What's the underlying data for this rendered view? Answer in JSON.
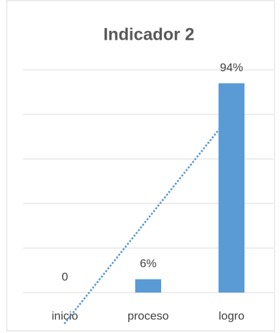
{
  "chart_data": {
    "type": "bar",
    "title": "Indicador 2",
    "categories": [
      "inicio",
      "proceso",
      "logro"
    ],
    "values": [
      0,
      6,
      94
    ],
    "value_labels": [
      "0",
      "6%",
      "94%"
    ],
    "color": "#5b9bd5",
    "ylim": [
      0,
      100
    ],
    "yticks": [
      0,
      20,
      40,
      60,
      80,
      100
    ],
    "grid": true,
    "trendline": "linear"
  }
}
